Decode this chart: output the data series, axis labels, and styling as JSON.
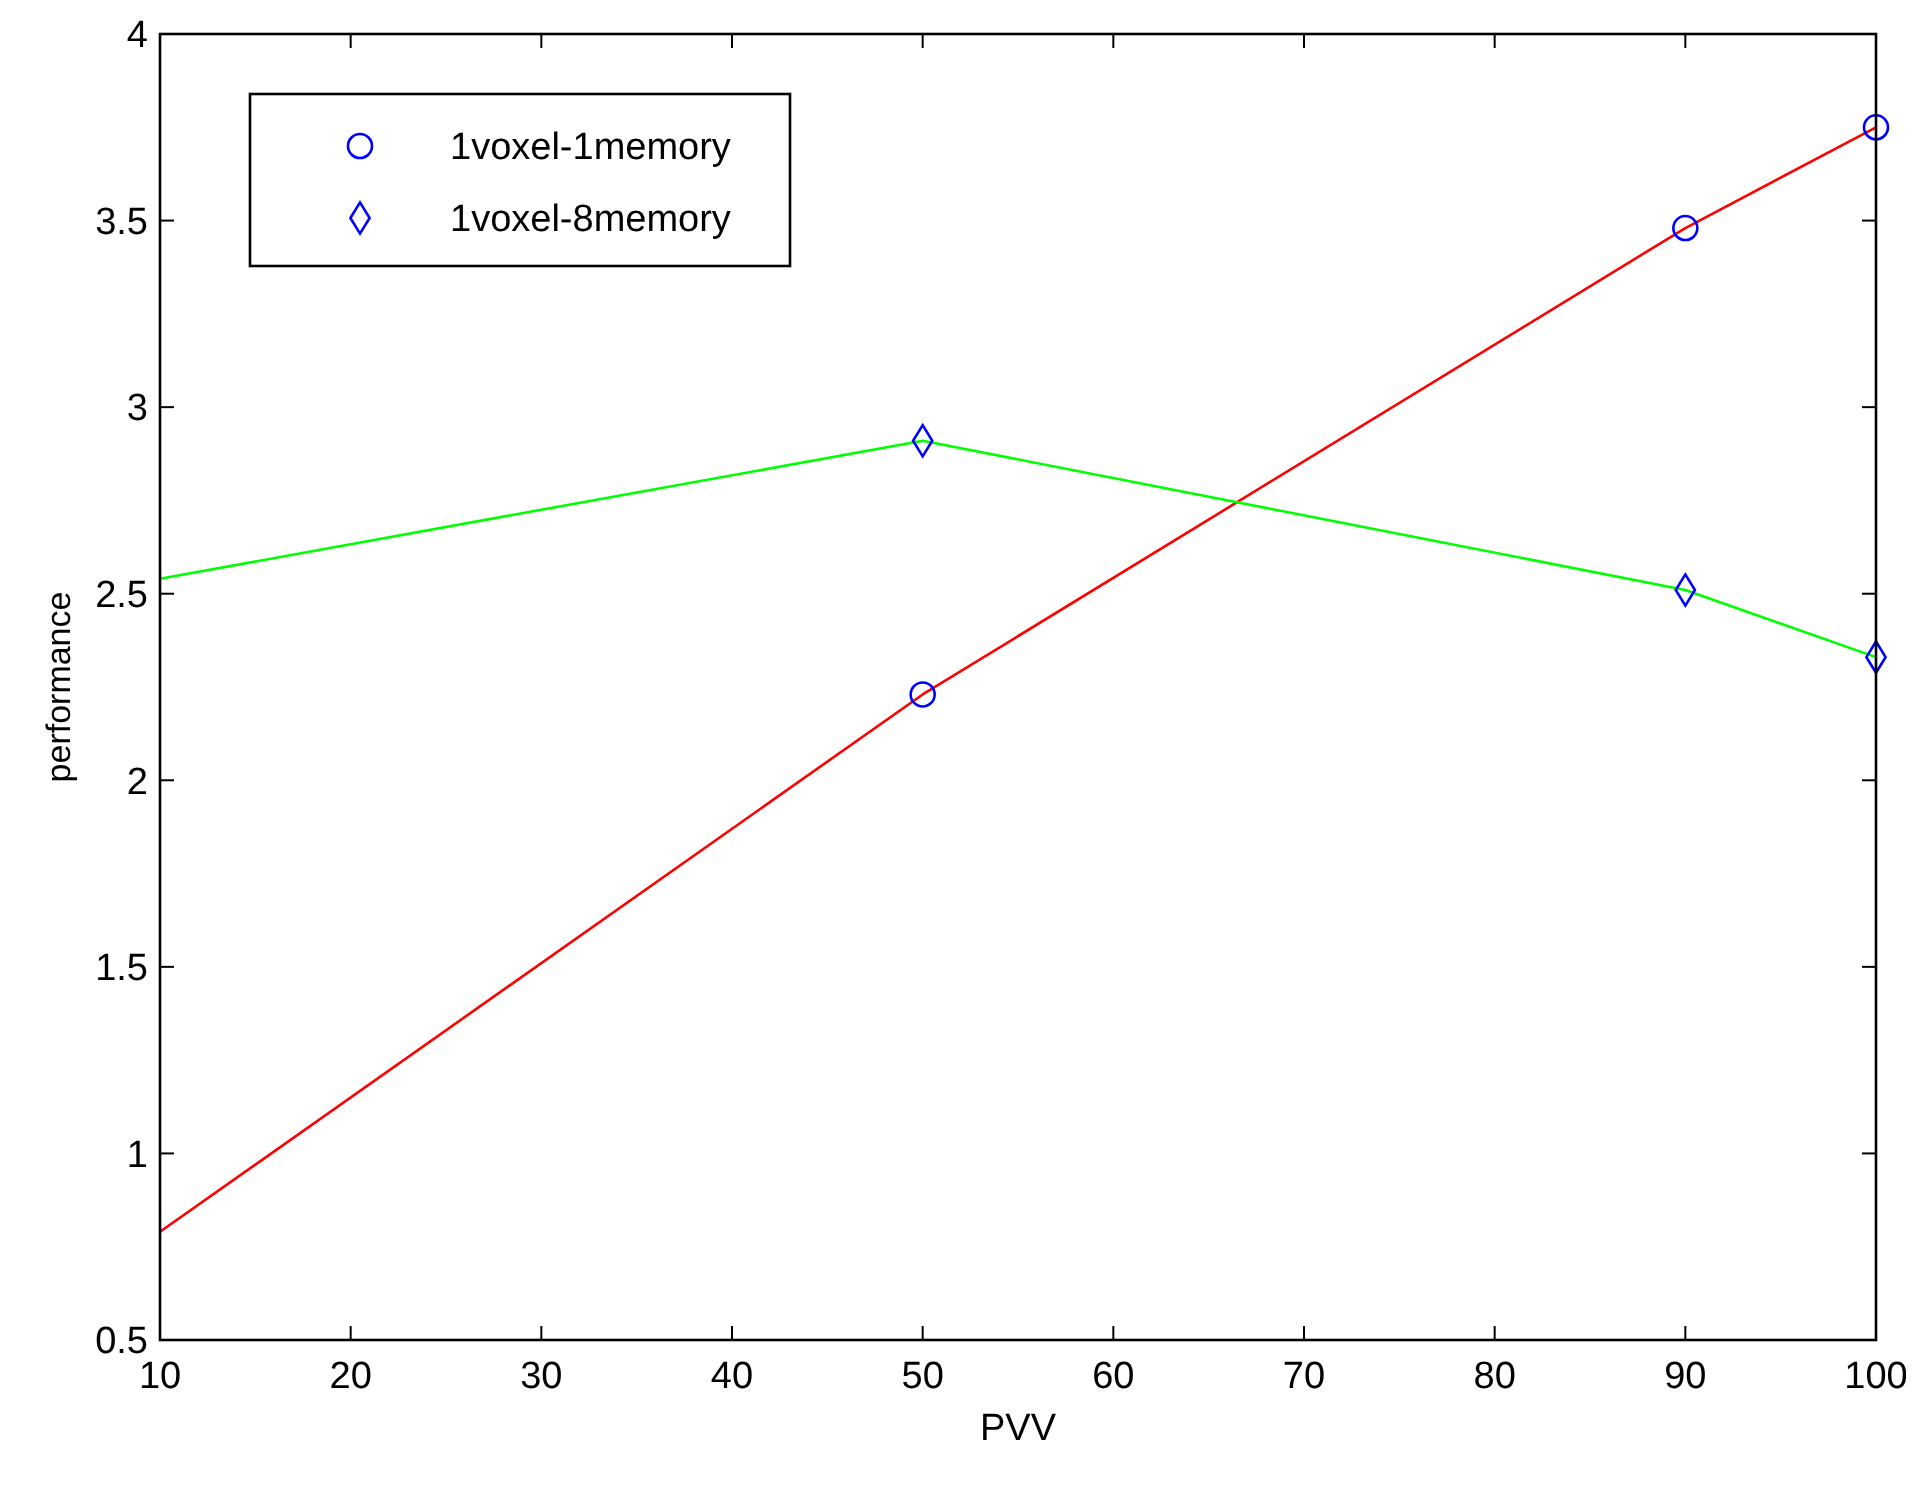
{
  "chart_data": {
    "type": "scatter",
    "xlabel": "PVV",
    "ylabel": "performance",
    "xlim": [
      10,
      100
    ],
    "ylim": [
      0.5,
      4
    ],
    "xticks": [
      10,
      20,
      30,
      40,
      50,
      60,
      70,
      80,
      90,
      100
    ],
    "yticks": [
      0.5,
      1,
      1.5,
      2,
      2.5,
      3,
      3.5,
      4
    ],
    "grid": false,
    "legend": "top left",
    "series": [
      {
        "type": "line",
        "color": "#ff0000",
        "x": [
          10,
          50,
          90,
          100
        ],
        "values": [
          0.79,
          2.23,
          3.48,
          3.75
        ],
        "marker": "none"
      },
      {
        "type": "line",
        "color": "#00ff00",
        "x": [
          10,
          50,
          90,
          100
        ],
        "values": [
          2.54,
          2.91,
          2.51,
          2.33
        ],
        "marker": "none"
      },
      {
        "name": "1voxel-1memory",
        "color": "#0000ff",
        "x": [
          50,
          90,
          100
        ],
        "values": [
          2.23,
          3.48,
          3.75
        ],
        "marker": "circle"
      },
      {
        "name": "1voxel-8memory",
        "color": "#0000ff",
        "x": [
          50,
          90,
          100
        ],
        "values": [
          2.91,
          2.51,
          2.33
        ],
        "marker": "diamond"
      }
    ]
  }
}
